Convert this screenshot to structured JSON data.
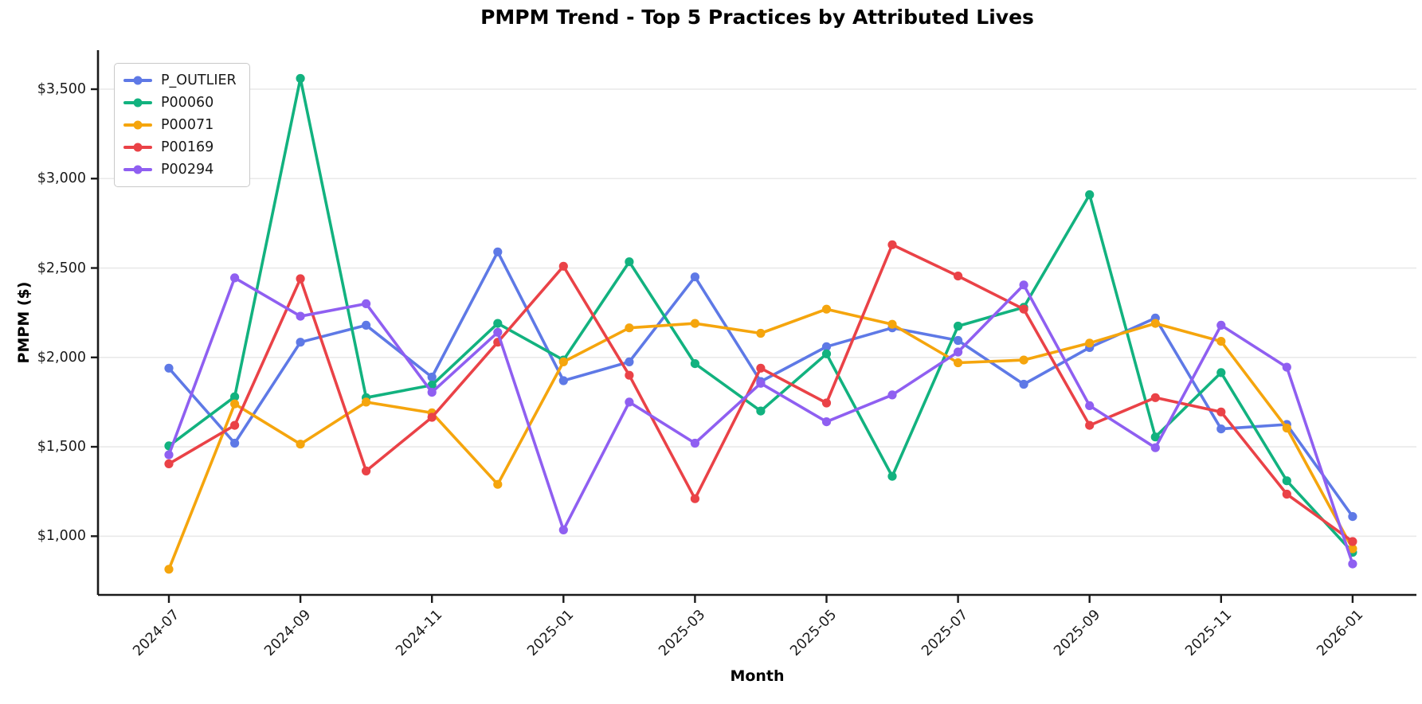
{
  "chart_data": {
    "type": "line",
    "title": "PMPM Trend - Top 5 Practices by Attributed Lives",
    "xlabel": "Month",
    "ylabel": "PMPM ($)",
    "categories": [
      "2024-07",
      "2024-08",
      "2024-09",
      "2024-10",
      "2024-11",
      "2024-12",
      "2025-01",
      "2025-02",
      "2025-03",
      "2025-04",
      "2025-05",
      "2025-06",
      "2025-07",
      "2025-08",
      "2025-09",
      "2025-10",
      "2025-11",
      "2025-12",
      "2026-01"
    ],
    "x_tick_labels": [
      "2024-07",
      "2024-09",
      "2024-11",
      "2025-01",
      "2025-03",
      "2025-05",
      "2025-07",
      "2025-09",
      "2025-11",
      "2026-01"
    ],
    "y_ticks": [
      {
        "value": 1000,
        "label": "$1,000"
      },
      {
        "value": 1500,
        "label": "$1,500"
      },
      {
        "value": 2000,
        "label": "$2,000"
      },
      {
        "value": 2500,
        "label": "$2,500"
      },
      {
        "value": 3000,
        "label": "$3,000"
      },
      {
        "value": 3500,
        "label": "$3,500"
      }
    ],
    "ylim": [
      670,
      3720
    ],
    "grid": "horizontal",
    "legend_position": "upper left",
    "series": [
      {
        "name": "P_OUTLIER",
        "color": "#5E79E6",
        "values": [
          1940,
          1520,
          2085,
          2180,
          1890,
          2590,
          1870,
          1975,
          2450,
          1865,
          2060,
          2165,
          2095,
          1850,
          2055,
          2220,
          1600,
          1625,
          1110
        ]
      },
      {
        "name": "P00060",
        "color": "#12B27F",
        "values": [
          1505,
          1780,
          3560,
          1775,
          1845,
          2190,
          1985,
          2535,
          1965,
          1700,
          2020,
          1335,
          2175,
          2280,
          2910,
          1555,
          1915,
          1310,
          910
        ]
      },
      {
        "name": "P00071",
        "color": "#F5A50D",
        "values": [
          815,
          1740,
          1515,
          1750,
          1690,
          1290,
          1975,
          2165,
          2190,
          2135,
          2270,
          2185,
          1970,
          1985,
          2080,
          2190,
          2090,
          1605,
          930
        ]
      },
      {
        "name": "P00169",
        "color": "#EA4247",
        "values": [
          1405,
          1620,
          2440,
          1365,
          1665,
          2085,
          2510,
          1900,
          1210,
          1940,
          1745,
          2630,
          2455,
          2270,
          1620,
          1775,
          1695,
          1235,
          970
        ]
      },
      {
        "name": "P00294",
        "color": "#8F5FF1",
        "values": [
          1455,
          2445,
          2230,
          2300,
          1805,
          2140,
          1035,
          1750,
          1520,
          1855,
          1640,
          1790,
          2030,
          2405,
          1730,
          1495,
          2180,
          1945,
          845
        ]
      }
    ]
  }
}
